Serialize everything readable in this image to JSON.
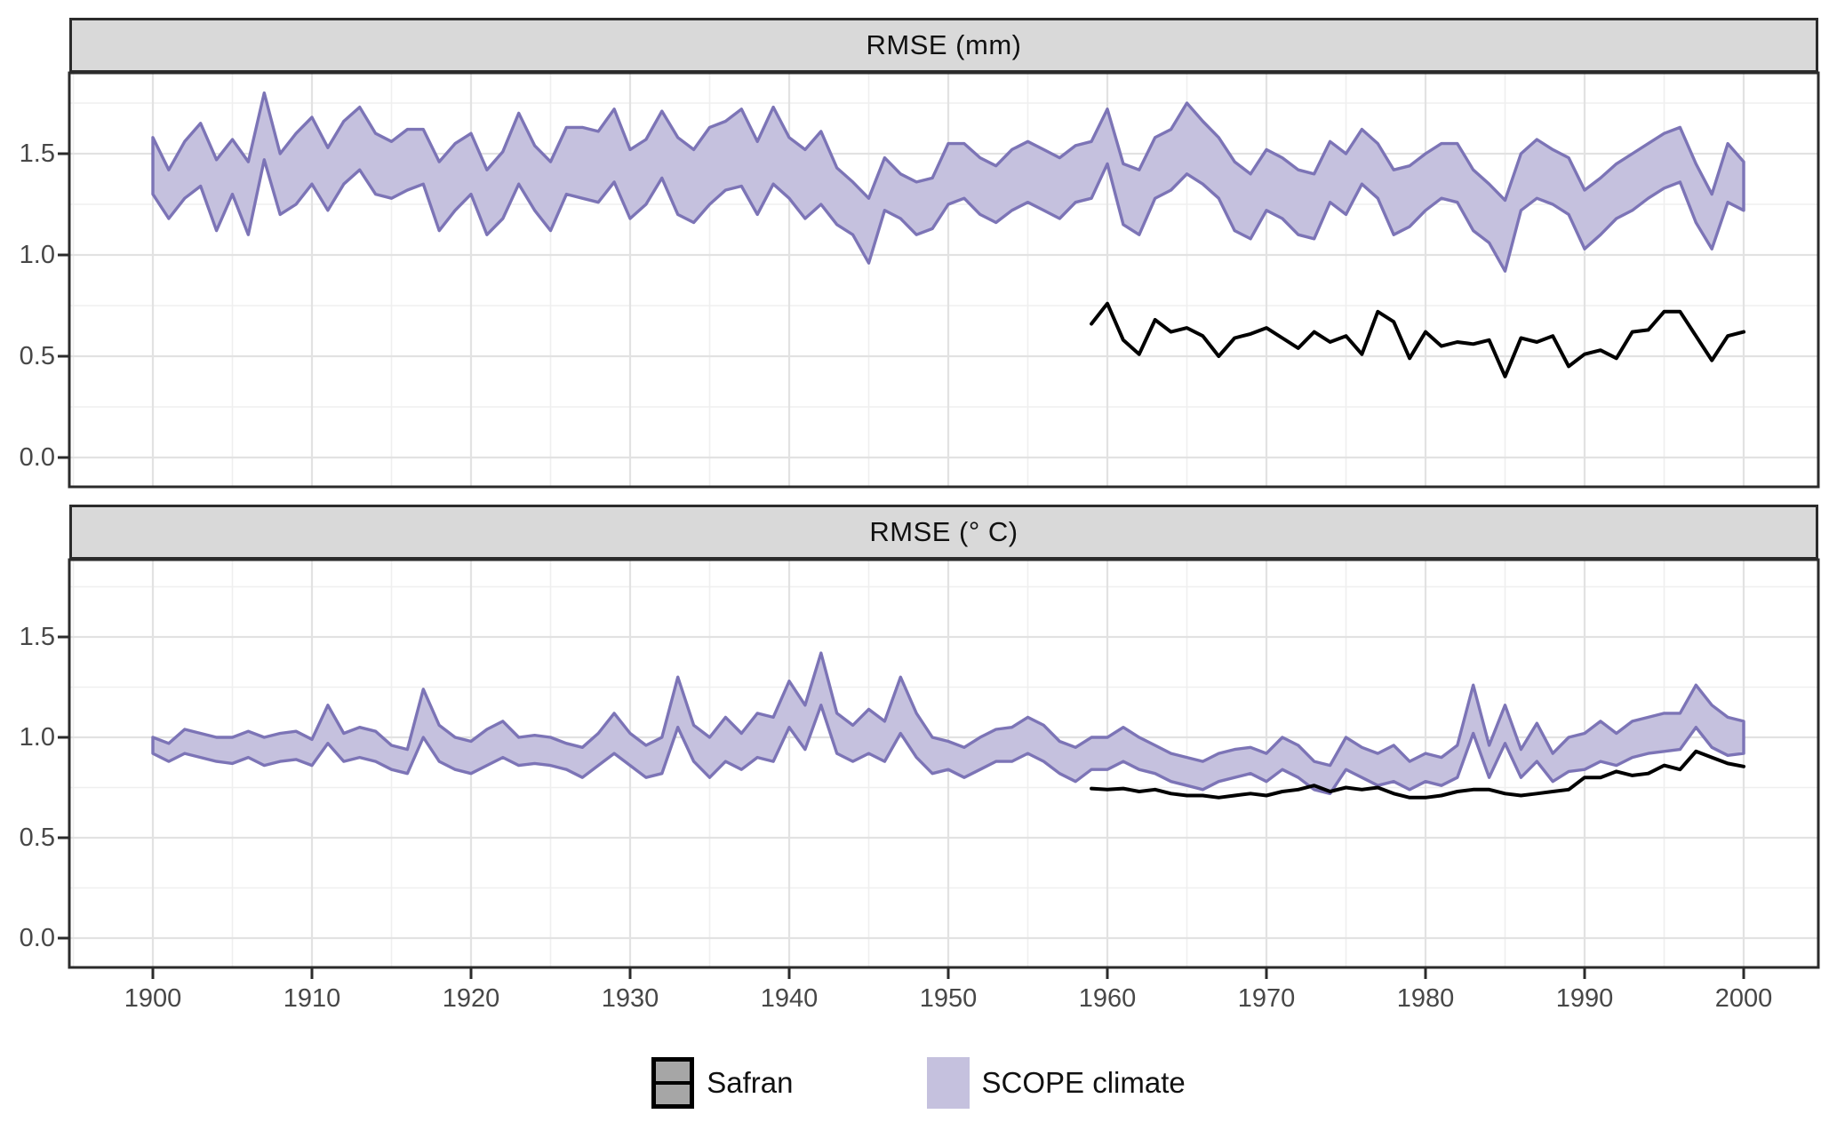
{
  "figure_title": "",
  "colors": {
    "ribbon_fill": "#c5c1de",
    "ribbon_stroke": "#7c74b6",
    "safran_line": "#000000",
    "safran_key_fill": "#a6a6a6",
    "strip_bg": "#d9d9d9",
    "panel_border": "#2b2b2b",
    "grid_major": "#e2e2e2",
    "grid_minor": "#efefef",
    "axis_text": "#474747",
    "background": "#ffffff"
  },
  "legend": {
    "items": [
      {
        "label": "Safran",
        "key": "line-in-grey-box"
      },
      {
        "label": "SCOPE climate",
        "key": "filled-purple-box"
      }
    ],
    "position": "bottom-center"
  },
  "x_axis": {
    "tick_labels": [
      "1900",
      "1910",
      "1920",
      "1930",
      "1940",
      "1950",
      "1960",
      "1970",
      "1980",
      "1990",
      "2000"
    ],
    "ticks": [
      1900,
      1910,
      1920,
      1930,
      1940,
      1950,
      1960,
      1970,
      1980,
      1990,
      2000
    ],
    "minor_ticks": [
      1895,
      1905,
      1915,
      1925,
      1935,
      1945,
      1955,
      1965,
      1975,
      1985,
      1995
    ],
    "range": [
      1894.7,
      2004.7
    ]
  },
  "y_axis": {
    "tick_labels": [
      "0.0",
      "0.5",
      "1.0",
      "1.5"
    ],
    "ticks": [
      0.0,
      0.5,
      1.0,
      1.5
    ],
    "minor_ticks": [
      0.25,
      0.75,
      1.25,
      1.75
    ],
    "range": [
      -0.15,
      1.9
    ]
  },
  "chart_data": [
    {
      "type": "area",
      "title": "RMSE (mm)",
      "x_start": 1900,
      "x_end": 2000,
      "grid": "on",
      "series": [
        {
          "name": "SCOPE climate",
          "kind": "band",
          "upper": [
            1.58,
            1.42,
            1.56,
            1.65,
            1.47,
            1.57,
            1.46,
            1.8,
            1.5,
            1.6,
            1.68,
            1.53,
            1.66,
            1.73,
            1.6,
            1.56,
            1.62,
            1.62,
            1.46,
            1.55,
            1.6,
            1.42,
            1.51,
            1.7,
            1.54,
            1.46,
            1.63,
            1.63,
            1.61,
            1.72,
            1.52,
            1.57,
            1.71,
            1.58,
            1.52,
            1.63,
            1.66,
            1.72,
            1.56,
            1.73,
            1.58,
            1.52,
            1.61,
            1.43,
            1.36,
            1.28,
            1.48,
            1.4,
            1.36,
            1.38,
            1.55,
            1.55,
            1.48,
            1.44,
            1.52,
            1.56,
            1.52,
            1.48,
            1.54,
            1.56,
            1.72,
            1.45,
            1.42,
            1.58,
            1.62,
            1.75,
            1.66,
            1.58,
            1.46,
            1.4,
            1.52,
            1.48,
            1.42,
            1.4,
            1.56,
            1.5,
            1.62,
            1.55,
            1.42,
            1.44,
            1.5,
            1.55,
            1.55,
            1.42,
            1.35,
            1.27,
            1.5,
            1.57,
            1.52,
            1.48,
            1.32,
            1.38,
            1.45,
            1.5,
            1.55,
            1.6,
            1.63,
            1.45,
            1.3,
            1.55,
            1.46
          ],
          "lower": [
            1.3,
            1.18,
            1.28,
            1.34,
            1.12,
            1.3,
            1.1,
            1.47,
            1.2,
            1.25,
            1.35,
            1.22,
            1.35,
            1.42,
            1.3,
            1.28,
            1.32,
            1.35,
            1.12,
            1.22,
            1.3,
            1.1,
            1.18,
            1.35,
            1.22,
            1.12,
            1.3,
            1.28,
            1.26,
            1.36,
            1.18,
            1.25,
            1.38,
            1.2,
            1.16,
            1.25,
            1.32,
            1.34,
            1.2,
            1.35,
            1.28,
            1.18,
            1.25,
            1.15,
            1.1,
            0.96,
            1.22,
            1.18,
            1.1,
            1.13,
            1.25,
            1.28,
            1.2,
            1.16,
            1.22,
            1.26,
            1.22,
            1.18,
            1.26,
            1.28,
            1.45,
            1.15,
            1.1,
            1.28,
            1.32,
            1.4,
            1.35,
            1.28,
            1.12,
            1.08,
            1.22,
            1.18,
            1.1,
            1.08,
            1.26,
            1.2,
            1.35,
            1.28,
            1.1,
            1.14,
            1.22,
            1.28,
            1.26,
            1.12,
            1.06,
            0.92,
            1.22,
            1.28,
            1.25,
            1.2,
            1.03,
            1.1,
            1.18,
            1.22,
            1.28,
            1.33,
            1.36,
            1.16,
            1.03,
            1.26,
            1.22
          ]
        },
        {
          "name": "Safran",
          "kind": "line",
          "x_start": 1959,
          "values": [
            0.66,
            0.76,
            0.58,
            0.51,
            0.68,
            0.62,
            0.64,
            0.6,
            0.5,
            0.59,
            0.61,
            0.64,
            0.59,
            0.54,
            0.62,
            0.57,
            0.6,
            0.51,
            0.72,
            0.67,
            0.49,
            0.62,
            0.55,
            0.57,
            0.56,
            0.58,
            0.4,
            0.59,
            0.57,
            0.6,
            0.45,
            0.51,
            0.53,
            0.49,
            0.62,
            0.63,
            0.72,
            0.72,
            0.6,
            0.48,
            0.6,
            0.62
          ]
        }
      ]
    },
    {
      "type": "area",
      "title": "RMSE (° C)",
      "x_start": 1900,
      "x_end": 2000,
      "grid": "on",
      "series": [
        {
          "name": "SCOPE climate",
          "kind": "band",
          "upper": [
            1.0,
            0.97,
            1.04,
            1.02,
            1.0,
            1.0,
            1.03,
            1.0,
            1.02,
            1.03,
            0.99,
            1.16,
            1.02,
            1.05,
            1.03,
            0.96,
            0.94,
            1.24,
            1.06,
            1.0,
            0.98,
            1.04,
            1.08,
            1.0,
            1.01,
            1.0,
            0.97,
            0.95,
            1.02,
            1.12,
            1.02,
            0.96,
            1.0,
            1.3,
            1.06,
            1.0,
            1.1,
            1.02,
            1.12,
            1.1,
            1.28,
            1.16,
            1.42,
            1.12,
            1.06,
            1.14,
            1.08,
            1.3,
            1.12,
            1.0,
            0.98,
            0.95,
            1.0,
            1.04,
            1.05,
            1.1,
            1.06,
            0.98,
            0.95,
            1.0,
            1.0,
            1.05,
            1.0,
            0.96,
            0.92,
            0.9,
            0.88,
            0.92,
            0.94,
            0.95,
            0.92,
            1.0,
            0.96,
            0.88,
            0.86,
            1.0,
            0.95,
            0.92,
            0.96,
            0.88,
            0.92,
            0.9,
            0.96,
            1.26,
            0.96,
            1.16,
            0.94,
            1.07,
            0.92,
            1.0,
            1.02,
            1.08,
            1.02,
            1.08,
            1.1,
            1.12,
            1.12,
            1.26,
            1.16,
            1.1,
            1.08
          ],
          "lower": [
            0.92,
            0.88,
            0.92,
            0.9,
            0.88,
            0.87,
            0.9,
            0.86,
            0.88,
            0.89,
            0.86,
            0.97,
            0.88,
            0.9,
            0.88,
            0.84,
            0.82,
            1.0,
            0.88,
            0.84,
            0.82,
            0.86,
            0.9,
            0.86,
            0.87,
            0.86,
            0.84,
            0.8,
            0.86,
            0.92,
            0.86,
            0.8,
            0.82,
            1.05,
            0.88,
            0.8,
            0.88,
            0.84,
            0.9,
            0.88,
            1.05,
            0.94,
            1.16,
            0.92,
            0.88,
            0.92,
            0.88,
            1.02,
            0.9,
            0.82,
            0.84,
            0.8,
            0.84,
            0.88,
            0.88,
            0.92,
            0.88,
            0.82,
            0.78,
            0.84,
            0.84,
            0.88,
            0.84,
            0.82,
            0.78,
            0.76,
            0.74,
            0.78,
            0.8,
            0.82,
            0.78,
            0.84,
            0.8,
            0.74,
            0.72,
            0.84,
            0.8,
            0.76,
            0.78,
            0.74,
            0.78,
            0.76,
            0.8,
            1.02,
            0.8,
            0.97,
            0.8,
            0.88,
            0.78,
            0.83,
            0.84,
            0.88,
            0.86,
            0.9,
            0.92,
            0.93,
            0.94,
            1.05,
            0.95,
            0.91,
            0.92
          ]
        },
        {
          "name": "Safran",
          "kind": "line",
          "x_start": 1959,
          "values": [
            0.745,
            0.74,
            0.745,
            0.73,
            0.74,
            0.72,
            0.71,
            0.71,
            0.7,
            0.71,
            0.72,
            0.71,
            0.73,
            0.74,
            0.76,
            0.73,
            0.75,
            0.74,
            0.75,
            0.72,
            0.7,
            0.7,
            0.71,
            0.73,
            0.74,
            0.74,
            0.72,
            0.71,
            0.72,
            0.73,
            0.74,
            0.8,
            0.8,
            0.83,
            0.81,
            0.82,
            0.86,
            0.84,
            0.93,
            0.9,
            0.87,
            0.855
          ]
        }
      ]
    }
  ]
}
